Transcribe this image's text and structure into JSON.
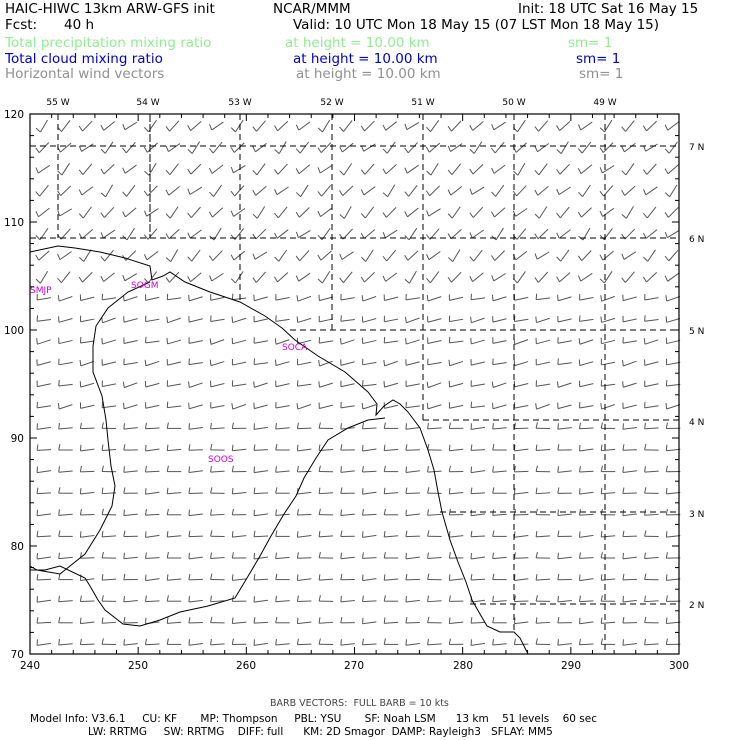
{
  "header": {
    "title_left": "HAIC-HIWC 13km ARW-GFS init",
    "org": "NCAR/MMM",
    "init": "Init: 18 UTC Sat 16 May 15",
    "fcst_label": "Fcst:",
    "fcst_value": "40 h",
    "valid": "Valid: 10 UTC Mon 18 May 15 (07 LST Mon 18 May 15)",
    "colors": {
      "fields": [
        "#90ee90",
        "#0000cd",
        "#909090"
      ]
    }
  },
  "fields": [
    {
      "name": "Total precipitation mixing ratio",
      "height": "at height = 10.00 km",
      "sm": "sm= 1"
    },
    {
      "name": "Total cloud mixing ratio",
      "height": "at height = 10.00 km",
      "sm": "sm= 1"
    },
    {
      "name": "Horizontal wind vectors",
      "height": "at height = 10.00 km",
      "sm": "sm= 1"
    }
  ],
  "map": {
    "x_ticks": [
      "240",
      "250",
      "260",
      "270",
      "280",
      "290",
      "300"
    ],
    "y_ticks": [
      "70",
      "80",
      "90",
      "100",
      "110",
      "120"
    ],
    "lon_labels": [
      "55 W",
      "54 W",
      "53 W",
      "52 W",
      "51 W",
      "50 W",
      "49 W"
    ],
    "lat_labels": [
      "7 N",
      "6 N",
      "5 N",
      "4 N",
      "3 N",
      "2 N"
    ],
    "stations": [
      "SMJP",
      "SOGM",
      "SOCA",
      "SOOS"
    ],
    "station_color": "#cc00cc"
  },
  "footer": {
    "barb_note": "BARB VECTORS:  FULL BARB = 10 kts",
    "model_line1": "Model Info: V3.6.1     CU: KF       MP: Thompson     PBL: YSU       SF: Noah LSM      13 km    51 levels    60 sec",
    "model_line2": "LW: RRTMG     SW: RRTMG    DIFF: full      KM: 2D Smagor  DAMP: Rayleigh3   SFLAY: MM5"
  }
}
